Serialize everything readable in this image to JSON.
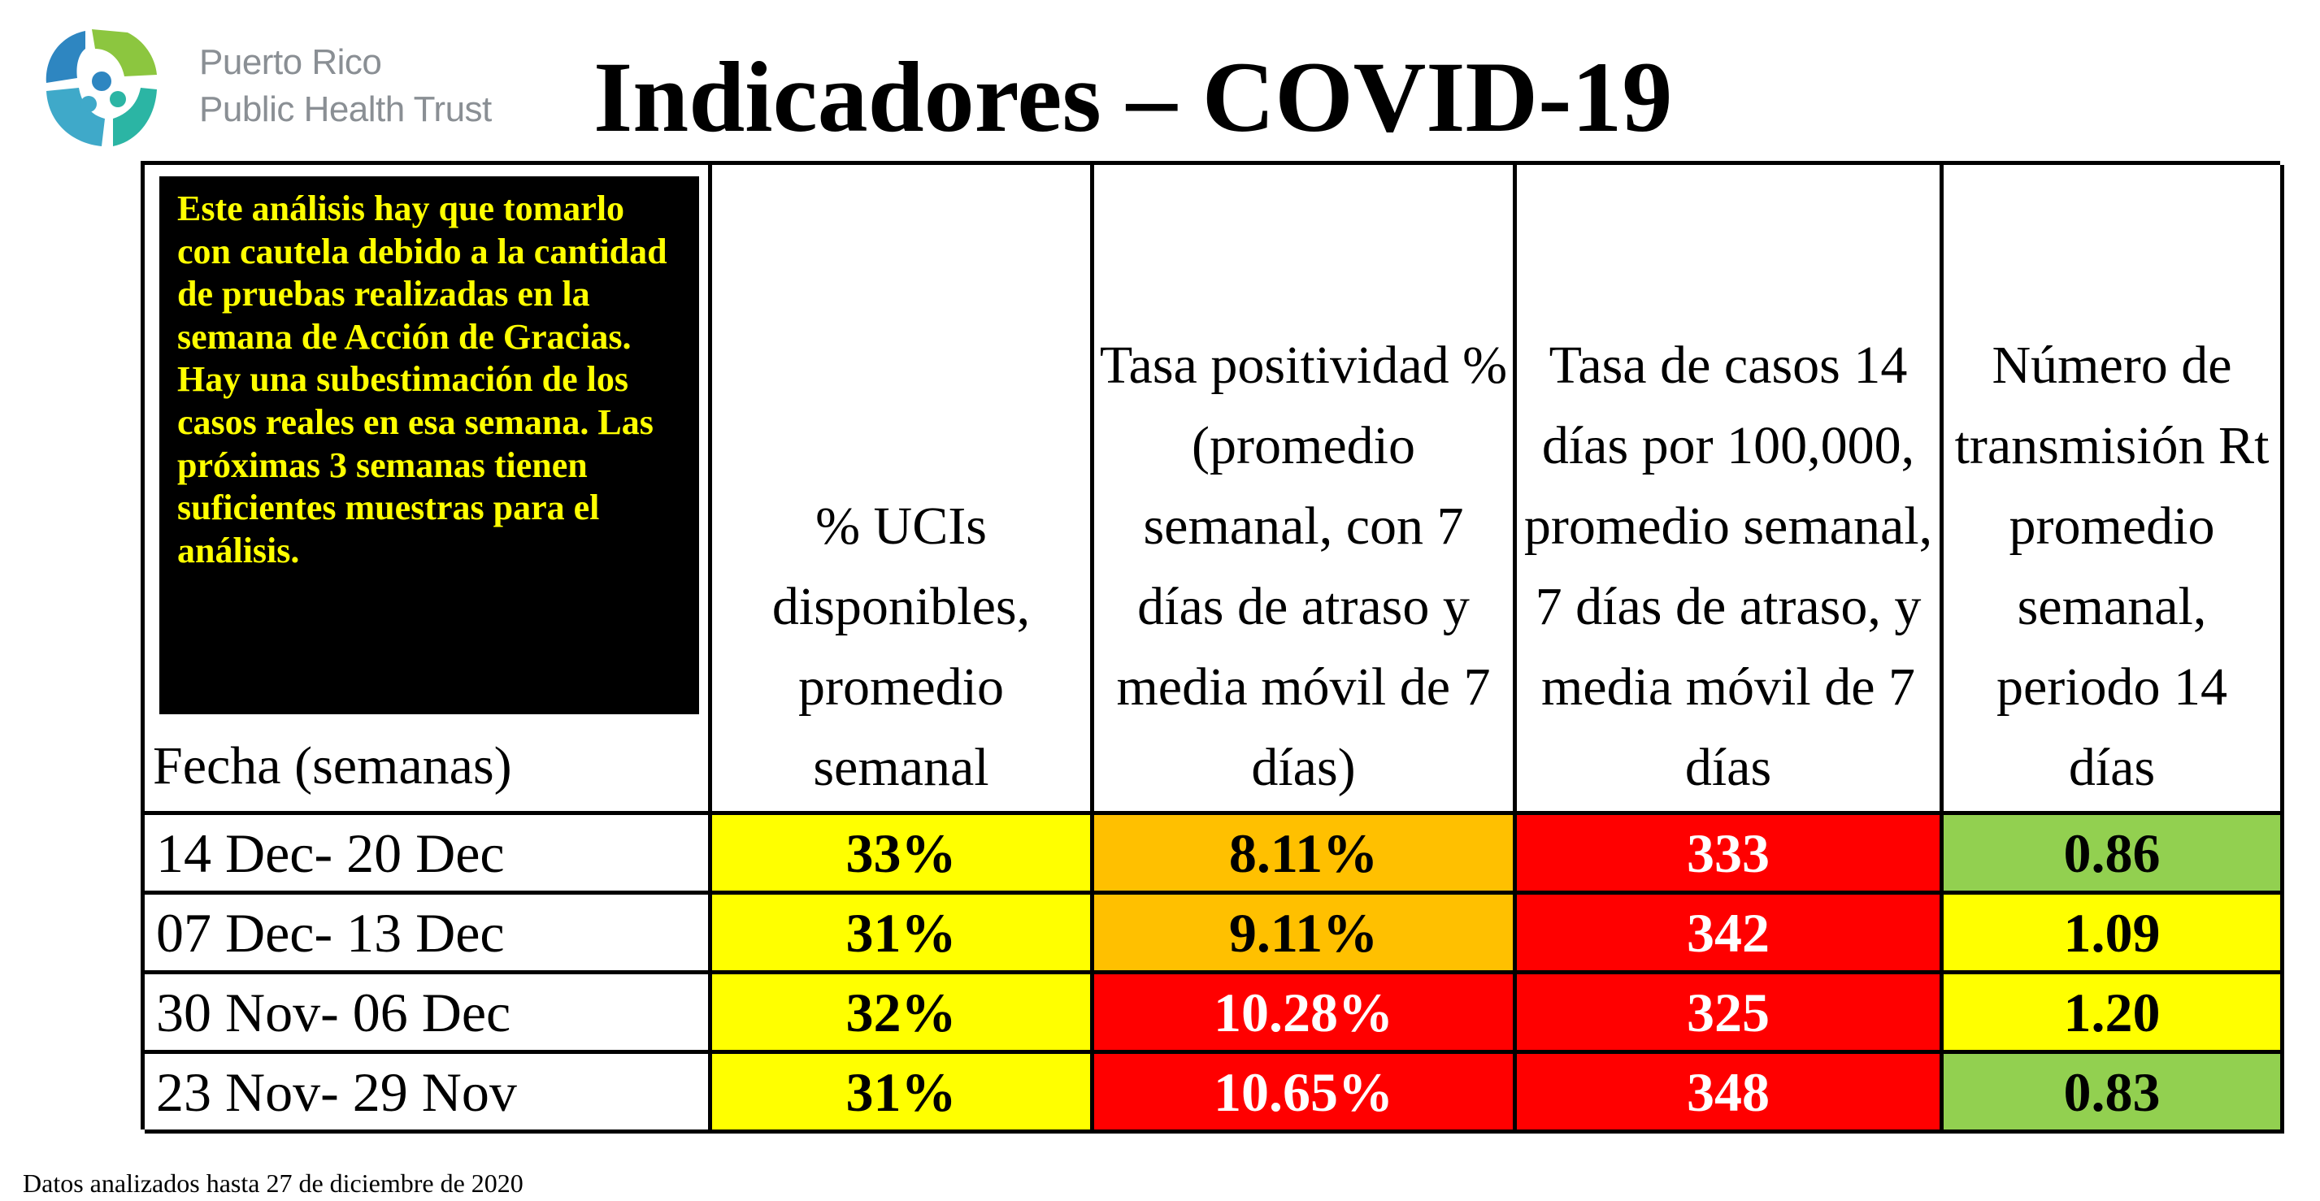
{
  "header": {
    "org_line1": "Puerto Rico",
    "org_line2": "Public Health Trust",
    "title": "Indicadores – COVID-19"
  },
  "colors": {
    "yellow": "#ffff00",
    "orange": "#ffc000",
    "red": "#ff0000",
    "green": "#92d050",
    "notice_bg": "#000000",
    "notice_text": "#ffff00"
  },
  "notice": "Este análisis hay que tomarlo con cautela debido a la cantidad de pruebas realizadas en la semana de Acción de Gracias. Hay una subestimación de los casos reales en esa semana. Las próximas 3 semanas tienen suficientes muestras para el análisis.",
  "table": {
    "headers": [
      "Fecha (semanas)",
      "% UCIs disponibles, promedio semanal",
      "Tasa positividad % (promedio semanal, con 7 días de atraso y media móvil de 7 días)",
      "Tasa de casos 14 días por 100,000, promedio semanal, 7 días de atraso, y media móvil de 7 días",
      "Número de transmisión Rt promedio semanal, periodo 14 días"
    ],
    "rows": [
      {
        "fecha": "14 Dec- 20 Dec",
        "ucis": "33%",
        "positividad": "8.11%",
        "casos": "333",
        "rt": "0.86",
        "c_ucis": "yellow",
        "c_pos": "orange",
        "c_casos": "red",
        "c_rt": "green"
      },
      {
        "fecha": "07 Dec- 13 Dec",
        "ucis": "31%",
        "positividad": "9.11%",
        "casos": "342",
        "rt": "1.09",
        "c_ucis": "yellow",
        "c_pos": "orange",
        "c_casos": "red",
        "c_rt": "yellow"
      },
      {
        "fecha": "30 Nov- 06 Dec",
        "ucis": "32%",
        "positividad": "10.28%",
        "casos": "325",
        "rt": "1.20",
        "c_ucis": "yellow",
        "c_pos": "red",
        "c_casos": "red",
        "c_rt": "yellow"
      },
      {
        "fecha": "23 Nov- 29 Nov",
        "ucis": "31%",
        "positividad": "10.65%",
        "casos": "348",
        "rt": "0.83",
        "c_ucis": "yellow",
        "c_pos": "red",
        "c_casos": "red",
        "c_rt": "green"
      }
    ]
  },
  "footer": "Datos analizados hasta 27 de diciembre de 2020"
}
